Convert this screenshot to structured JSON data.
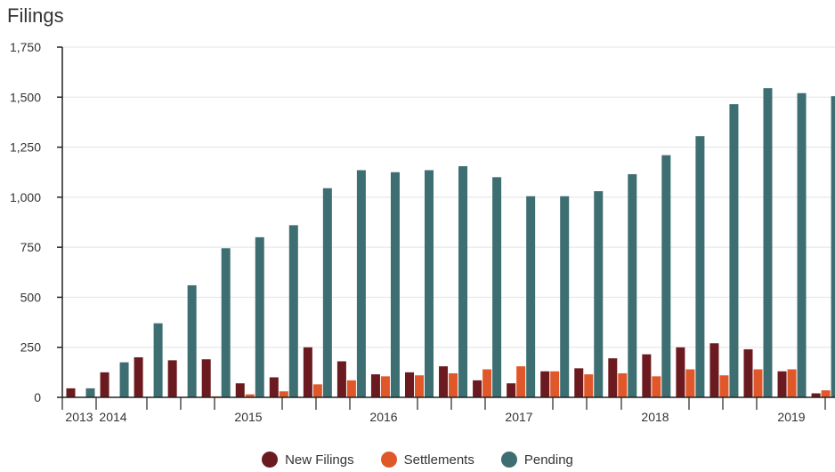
{
  "chart_data": {
    "type": "bar",
    "title": "Filings",
    "xlabel": "",
    "ylabel": "",
    "ylim": [
      0,
      1750
    ],
    "yticks": [
      0,
      250,
      500,
      750,
      1000,
      1250,
      1500,
      1750
    ],
    "ytick_labels": [
      "0",
      "250",
      "500",
      "750",
      "1,000",
      "1,250",
      "1,500",
      "1,750"
    ],
    "xtick_labels": [
      "2013",
      "2014",
      "2015",
      "2016",
      "2017",
      "2018",
      "2019"
    ],
    "grid": true,
    "legend_position": "bottom",
    "colors": {
      "new_filings": "#6b1a1f",
      "settlements": "#e0582a",
      "pending": "#3d6e71"
    },
    "periods": [
      "2013 Q4",
      "2014 Q1",
      "2014 Q2",
      "2014 Q3",
      "2014 Q4",
      "2015 Q1",
      "2015 Q2",
      "2015 Q3",
      "2015 Q4",
      "2016 Q1",
      "2016 Q2",
      "2016 Q3",
      "2016 Q4",
      "2017 Q1",
      "2017 Q2",
      "2017 Q3",
      "2017 Q4",
      "2018 Q1",
      "2018 Q2",
      "2018 Q3",
      "2018 Q4",
      "2019 Q1",
      "2019 Q2",
      "2019 Q3",
      "2019 Q4"
    ],
    "series": [
      {
        "name": "New Filings",
        "values": [
          45,
          125,
          200,
          185,
          190,
          70,
          100,
          250,
          180,
          115,
          125,
          155,
          85,
          70,
          130,
          145,
          195,
          215,
          250,
          270,
          240,
          130,
          20,
          0,
          0
        ]
      },
      {
        "name": "Settlements",
        "values": [
          0,
          0,
          0,
          0,
          5,
          15,
          30,
          65,
          85,
          105,
          110,
          120,
          140,
          155,
          130,
          115,
          120,
          105,
          140,
          110,
          140,
          140,
          35,
          0,
          0
        ]
      },
      {
        "name": "Pending",
        "values": [
          45,
          175,
          370,
          560,
          745,
          800,
          860,
          1045,
          1135,
          1125,
          1135,
          1155,
          1100,
          1005,
          1005,
          1030,
          1115,
          1210,
          1305,
          1465,
          1545,
          1520,
          1505,
          0,
          0
        ]
      }
    ]
  }
}
